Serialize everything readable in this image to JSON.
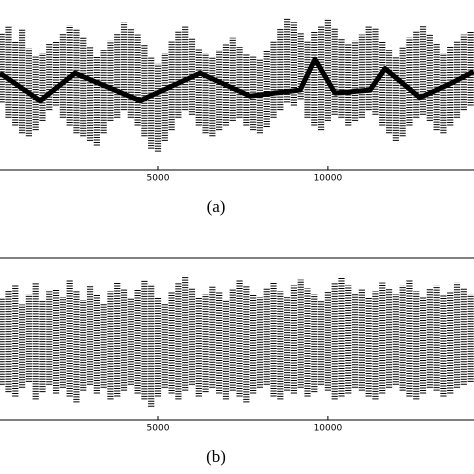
{
  "chart_data": [
    {
      "type": "range",
      "caption": "(a)",
      "x": [
        400,
        600,
        800,
        1000,
        1200,
        1400,
        1600,
        1800,
        2000,
        2200,
        2400,
        2600,
        2800,
        3000,
        3200,
        3400,
        3600,
        3800,
        4000,
        4200,
        4400,
        4600,
        4800,
        5000,
        5200,
        5400,
        5600,
        5800,
        6000,
        6200,
        6400,
        6600,
        6800,
        7000,
        7200,
        7400,
        7600,
        7800,
        8000,
        8200,
        8400,
        8600,
        8800,
        9000,
        9200,
        9400,
        9600,
        9800,
        10000,
        10200,
        10400,
        10600,
        10800,
        11000,
        11200,
        11400,
        11600,
        11800,
        12000,
        12200,
        12400,
        12600,
        12800,
        13000,
        13200,
        13400,
        13600,
        13800,
        14000,
        14200
      ],
      "high": [
        85,
        90,
        80,
        88,
        75,
        70,
        72,
        78,
        80,
        85,
        90,
        88,
        82,
        76,
        70,
        74,
        80,
        85,
        92,
        88,
        84,
        78,
        70,
        65,
        72,
        80,
        86,
        90,
        82,
        75,
        72,
        70,
        74,
        78,
        82,
        76,
        72,
        70,
        68,
        74,
        80,
        88,
        95,
        92,
        85,
        80,
        86,
        90,
        94,
        88,
        82,
        78,
        80,
        84,
        90,
        88,
        80,
        74,
        70,
        76,
        82,
        86,
        90,
        84,
        78,
        72,
        76,
        80,
        84,
        86
      ],
      "low": [
        40,
        30,
        25,
        20,
        18,
        22,
        28,
        35,
        38,
        30,
        25,
        20,
        18,
        15,
        12,
        20,
        28,
        30,
        35,
        30,
        25,
        18,
        10,
        8,
        15,
        22,
        30,
        35,
        32,
        25,
        20,
        18,
        22,
        25,
        28,
        30,
        25,
        22,
        20,
        24,
        30,
        35,
        40,
        38,
        42,
        30,
        25,
        22,
        28,
        32,
        30,
        25,
        28,
        30,
        35,
        32,
        25,
        20,
        15,
        18,
        25,
        30,
        32,
        28,
        22,
        20,
        25,
        30,
        35,
        38
      ],
      "trend": {
        "x": [
          350,
          1530,
          2560,
          4470,
          6240,
          7710,
          9180,
          9620,
          10210,
          11240,
          11680,
          12710,
          13590,
          14290
        ],
        "values": [
          59,
          41,
          59,
          41,
          59,
          44,
          48,
          68,
          46,
          48,
          62,
          43,
          52,
          60
        ]
      },
      "color": "#000000",
      "xlim": [
        350,
        14300
      ],
      "ylim": [
        0,
        100
      ],
      "xticks": [
        5000,
        10000
      ]
    },
    {
      "type": "range",
      "caption": "(b)",
      "x": [
        400,
        600,
        800,
        1000,
        1200,
        1400,
        1600,
        1800,
        2000,
        2200,
        2400,
        2600,
        2800,
        3000,
        3200,
        3400,
        3600,
        3800,
        4000,
        4200,
        4400,
        4600,
        4800,
        5000,
        5200,
        5400,
        5600,
        5800,
        6000,
        6200,
        6400,
        6600,
        6800,
        7000,
        7200,
        7400,
        7600,
        7800,
        8000,
        8200,
        8400,
        8600,
        8800,
        9000,
        9200,
        9400,
        9600,
        9800,
        10000,
        10200,
        10400,
        10600,
        10800,
        11000,
        11200,
        11400,
        11600,
        11800,
        12000,
        12200,
        12400,
        12600,
        12800,
        13000,
        13200,
        13400,
        13600,
        13800,
        14000,
        14200
      ],
      "high": [
        80,
        85,
        88,
        75,
        82,
        90,
        78,
        84,
        86,
        80,
        92,
        85,
        78,
        88,
        82,
        76,
        84,
        90,
        86,
        80,
        85,
        92,
        88,
        80,
        76,
        84,
        90,
        94,
        86,
        80,
        82,
        88,
        84,
        78,
        86,
        92,
        88,
        82,
        80,
        86,
        90,
        84,
        80,
        88,
        92,
        86,
        82,
        78,
        84,
        90,
        94,
        88,
        82,
        86,
        80,
        84,
        90,
        86,
        82,
        88,
        92,
        84,
        80,
        86,
        88,
        82,
        84,
        90,
        86,
        82
      ],
      "low": [
        20,
        15,
        12,
        18,
        22,
        10,
        15,
        20,
        14,
        18,
        12,
        8,
        16,
        20,
        14,
        18,
        10,
        12,
        16,
        20,
        14,
        10,
        5,
        12,
        18,
        14,
        10,
        16,
        20,
        12,
        15,
        18,
        14,
        10,
        16,
        12,
        8,
        14,
        18,
        20,
        12,
        10,
        16,
        14,
        18,
        12,
        15,
        20,
        16,
        10,
        12,
        14,
        18,
        16,
        12,
        10,
        14,
        18,
        20,
        16,
        12,
        10,
        14,
        18,
        16,
        12,
        14,
        18,
        20,
        22
      ],
      "color": "#000000",
      "xlim": [
        350,
        14300
      ],
      "ylim": [
        0,
        100
      ],
      "xticks": [
        5000,
        10000
      ]
    }
  ]
}
